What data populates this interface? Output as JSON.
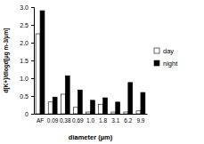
{
  "chart_data": {
    "type": "bar",
    "x_label": "diameter (µm)",
    "y_label": "d[K+]/dlogd[µg m-3/µm]",
    "categories": [
      "AF",
      "0.09",
      "0.38",
      "0.69",
      "1.0",
      "1.8",
      "3.1",
      "6.2",
      "9.9"
    ],
    "series": [
      {
        "name": "day",
        "color": "#ffffff",
        "values": [
          2.25,
          0.33,
          0.55,
          0.18,
          0.05,
          0.27,
          0.05,
          0.05,
          0.08
        ]
      },
      {
        "name": "night",
        "color": "#000000",
        "values": [
          2.9,
          0.47,
          1.07,
          0.67,
          0.38,
          0.45,
          0.33,
          0.88,
          0.6
        ]
      }
    ],
    "ylim": [
      0,
      3
    ],
    "yticks": [
      0,
      0.5,
      {
        "value": 1,
        "label": "1.0"
      },
      1.5,
      {
        "value": 2,
        "label": "2.0"
      },
      2.5,
      {
        "value": 3,
        "label": "3.0"
      }
    ],
    "legend": "right",
    "grid": false
  }
}
